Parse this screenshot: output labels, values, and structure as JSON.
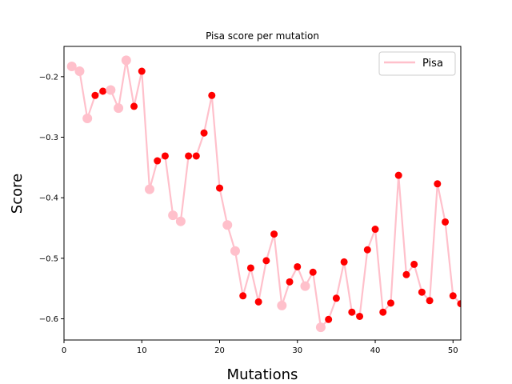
{
  "chart_data": {
    "type": "line",
    "title": "Pisa score per mutation",
    "xlabel": "Mutations",
    "ylabel": "Score",
    "xlim": [
      0,
      51
    ],
    "ylim": [
      -0.635,
      -0.15
    ],
    "xticks": [
      0,
      10,
      20,
      30,
      40,
      50
    ],
    "yticks": [
      -0.6,
      -0.5,
      -0.4,
      -0.3,
      -0.2
    ],
    "grid": false,
    "legend": {
      "position": "top-right"
    },
    "series": [
      {
        "name": "Pisa",
        "line_color": "#ffc0cb",
        "x": [
          1,
          2,
          3,
          4,
          5,
          6,
          7,
          8,
          9,
          10,
          11,
          12,
          13,
          14,
          15,
          16,
          17,
          18,
          19,
          20,
          21,
          22,
          23,
          24,
          25,
          26,
          27,
          28,
          29,
          30,
          31,
          32,
          33,
          34,
          35,
          36,
          37,
          38,
          39,
          40,
          41,
          42,
          43,
          44,
          45,
          46,
          47,
          48,
          49,
          50,
          51
        ],
        "y": [
          -0.183,
          -0.191,
          -0.269,
          -0.231,
          -0.224,
          -0.222,
          -0.252,
          -0.173,
          -0.249,
          -0.191,
          -0.386,
          -0.339,
          -0.331,
          -0.429,
          -0.439,
          -0.331,
          -0.331,
          -0.293,
          -0.231,
          -0.384,
          -0.445,
          -0.488,
          -0.562,
          -0.516,
          -0.572,
          -0.504,
          -0.46,
          -0.578,
          -0.539,
          -0.514,
          -0.546,
          -0.523,
          -0.614,
          -0.601,
          -0.566,
          -0.506,
          -0.589,
          -0.596,
          -0.486,
          -0.452,
          -0.589,
          -0.574,
          -0.363,
          -0.527,
          -0.51,
          -0.556,
          -0.57,
          -0.377,
          -0.44,
          -0.562,
          -0.575
        ],
        "markers": [
          "big",
          "big",
          "big",
          "small",
          "small",
          "big",
          "big",
          "big",
          "small",
          "small",
          "big",
          "small",
          "small",
          "big",
          "big",
          "small",
          "small",
          "small",
          "small",
          "small",
          "big",
          "big",
          "small",
          "small",
          "small",
          "small",
          "small",
          "big",
          "small",
          "small",
          "big",
          "small",
          "big",
          "small",
          "small",
          "small",
          "small",
          "small",
          "small",
          "small",
          "small",
          "small",
          "small",
          "small",
          "small",
          "small",
          "small",
          "small",
          "small",
          "small",
          "small"
        ]
      }
    ],
    "marker_colors": {
      "big": "#ffc0cb",
      "small": "#ff0000"
    }
  }
}
